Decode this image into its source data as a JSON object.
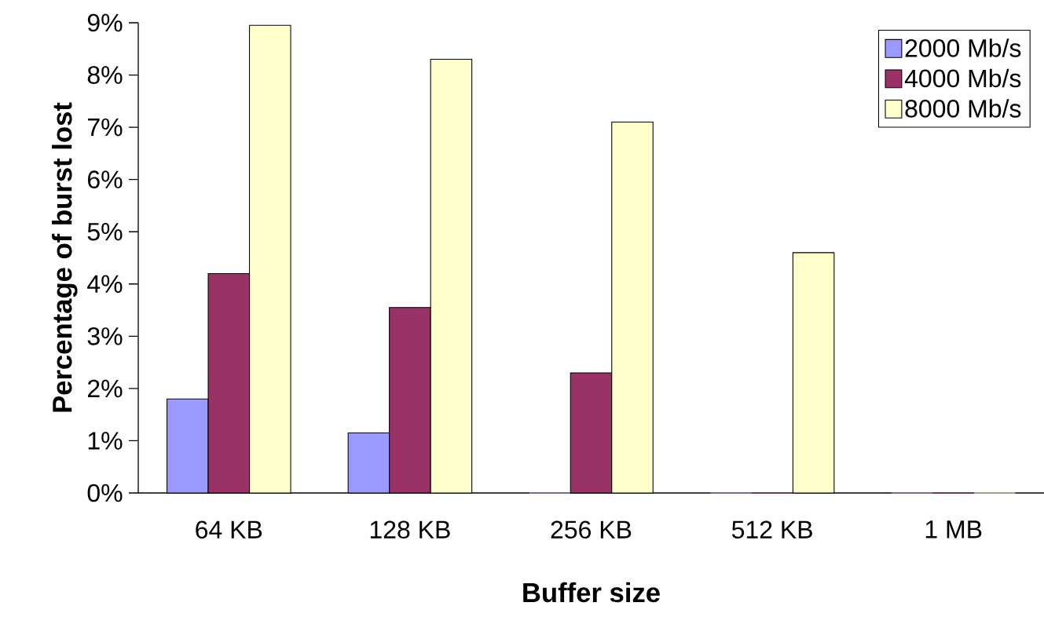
{
  "chart_data": {
    "type": "bar",
    "xlabel": "Buffer size",
    "ylabel": "Percentage of burst lost",
    "categories": [
      "64 KB",
      "128 KB",
      "256 KB",
      "512 KB",
      "1 MB"
    ],
    "series": [
      {
        "name": "2000 Mb/s",
        "color": "#9999ff",
        "values": [
          1.8,
          1.15,
          0,
          0,
          0
        ]
      },
      {
        "name": "4000 Mb/s",
        "color": "#993366",
        "values": [
          4.2,
          3.55,
          2.3,
          0,
          0
        ]
      },
      {
        "name": "8000 Mb/s",
        "color": "#ffffcc",
        "values": [
          8.95,
          8.3,
          7.1,
          4.6,
          0
        ]
      }
    ],
    "ylim": [
      0,
      9
    ],
    "yticks": [
      {
        "value": 0,
        "label": "0%"
      },
      {
        "value": 1,
        "label": "1%"
      },
      {
        "value": 2,
        "label": "2%"
      },
      {
        "value": 3,
        "label": "3%"
      },
      {
        "value": 4,
        "label": "4%"
      },
      {
        "value": 5,
        "label": "5%"
      },
      {
        "value": 6,
        "label": "6%"
      },
      {
        "value": 7,
        "label": "7%"
      },
      {
        "value": 8,
        "label": "8%"
      },
      {
        "value": 9,
        "label": "9%"
      }
    ],
    "grid": false,
    "legend": "top right"
  }
}
